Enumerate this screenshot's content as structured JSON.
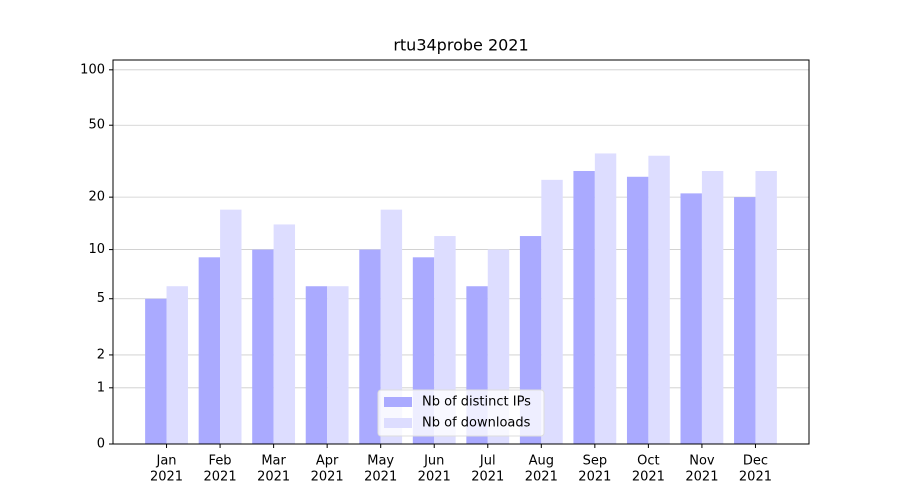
{
  "chart_data": {
    "type": "grouped_bar",
    "title": "rtu34probe 2021",
    "categories": [
      [
        "Jan",
        "2021"
      ],
      [
        "Feb",
        "2021"
      ],
      [
        "Mar",
        "2021"
      ],
      [
        "Apr",
        "2021"
      ],
      [
        "May",
        "2021"
      ],
      [
        "Jun",
        "2021"
      ],
      [
        "Jul",
        "2021"
      ],
      [
        "Aug",
        "2021"
      ],
      [
        "Sep",
        "2021"
      ],
      [
        "Oct",
        "2021"
      ],
      [
        "Nov",
        "2021"
      ],
      [
        "Dec",
        "2021"
      ]
    ],
    "series": [
      {
        "name": "Nb of distinct IPs",
        "color": "#aaaaff",
        "values": [
          5,
          9,
          10,
          6,
          10,
          9,
          6,
          12,
          28,
          26,
          21,
          20
        ]
      },
      {
        "name": "Nb of downloads",
        "color": "#ddddff",
        "values": [
          6,
          17,
          14,
          6,
          17,
          12,
          10,
          25,
          35,
          34,
          28,
          28
        ]
      }
    ],
    "yscale": "log1p",
    "ylim": [
      0,
      113
    ],
    "yticks": [
      0,
      1,
      2,
      5,
      10,
      20,
      50,
      100
    ],
    "grid": true,
    "legend": "lower center"
  }
}
